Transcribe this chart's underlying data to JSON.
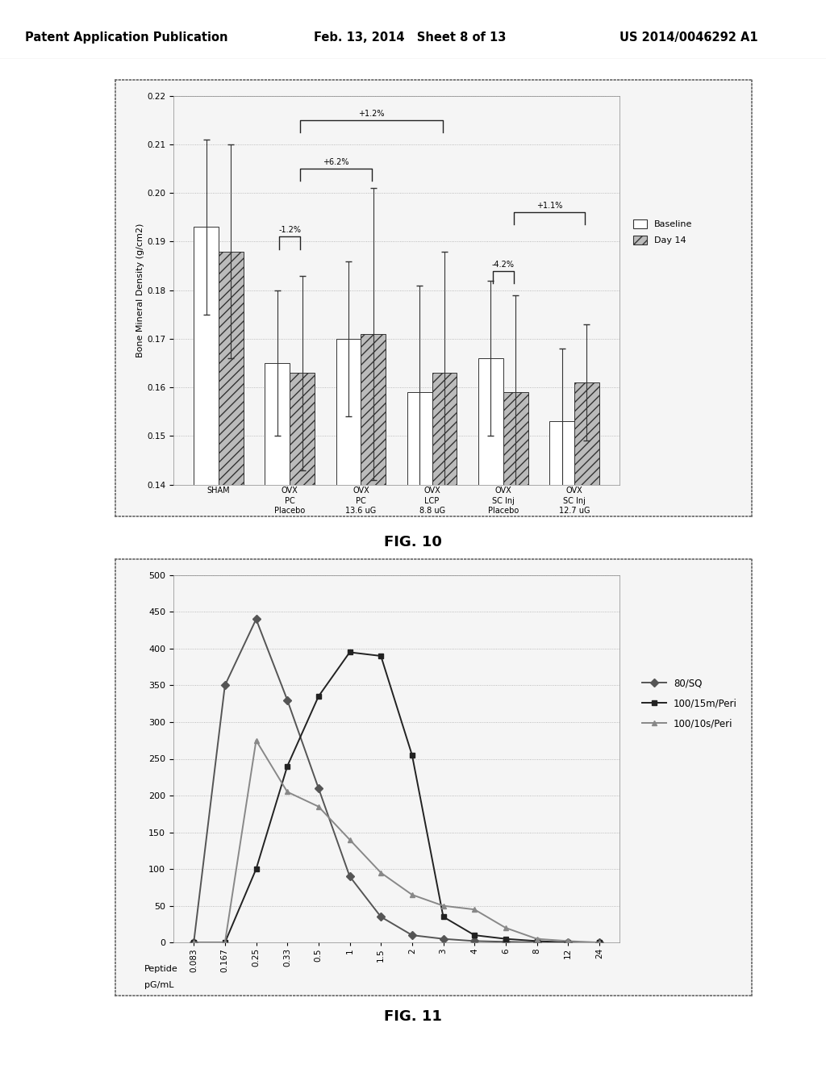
{
  "header_left": "Patent Application Publication",
  "header_mid": "Feb. 13, 2014   Sheet 8 of 13",
  "header_right": "US 2014/0046292 A1",
  "fig10": {
    "categories": [
      "SHAM",
      "OVX\nPC\nPlacebo",
      "OVX\nPC\n13.6 uG",
      "OVX\nLCP\n8.8 uG",
      "OVX\nSC Inj\nPlacebo",
      "OVX\nSC Inj\n12.7 uG"
    ],
    "baseline_values": [
      0.193,
      0.165,
      0.17,
      0.159,
      0.166,
      0.153
    ],
    "day14_values": [
      0.188,
      0.163,
      0.171,
      0.163,
      0.159,
      0.161
    ],
    "baseline_errors": [
      0.018,
      0.015,
      0.016,
      0.022,
      0.016,
      0.015
    ],
    "day14_errors": [
      0.022,
      0.02,
      0.03,
      0.025,
      0.02,
      0.012
    ],
    "ylabel": "Bone Mineral Density (g/cm2)",
    "ylim": [
      0.14,
      0.22
    ],
    "yticks": [
      0.14,
      0.15,
      0.16,
      0.17,
      0.18,
      0.19,
      0.2,
      0.21,
      0.22
    ],
    "baseline_color": "#ffffff",
    "day14_color": "#bbbbbb",
    "day14_hatch": "///",
    "fig_label": "FIG. 10"
  },
  "fig11": {
    "x_labels": [
      "0.083",
      "0.167",
      "0.25",
      "0.33",
      "0.5",
      "1",
      "1.5",
      "2",
      "3",
      "4",
      "6",
      "8",
      "12",
      "24"
    ],
    "series": [
      {
        "name": "80/SQ",
        "color": "#555555",
        "marker": "D",
        "values": [
          0,
          350,
          440,
          330,
          210,
          90,
          35,
          10,
          5,
          2,
          1,
          0,
          0,
          0
        ]
      },
      {
        "name": "100/15m/Peri",
        "color": "#222222",
        "marker": "s",
        "values": [
          0,
          0,
          100,
          240,
          335,
          395,
          390,
          255,
          35,
          10,
          5,
          2,
          0,
          0
        ]
      },
      {
        "name": "100/10s/Peri",
        "color": "#888888",
        "marker": "^",
        "values": [
          0,
          0,
          275,
          205,
          185,
          140,
          95,
          65,
          50,
          45,
          20,
          5,
          2,
          0
        ]
      }
    ],
    "xlabel_line1": "Peptide",
    "xlabel_line2": "pG/mL",
    "ylim": [
      0,
      500
    ],
    "yticks": [
      0,
      50,
      100,
      150,
      200,
      250,
      300,
      350,
      400,
      450,
      500
    ],
    "fig_label": "FIG. 11"
  },
  "bg_color": "#ffffff"
}
